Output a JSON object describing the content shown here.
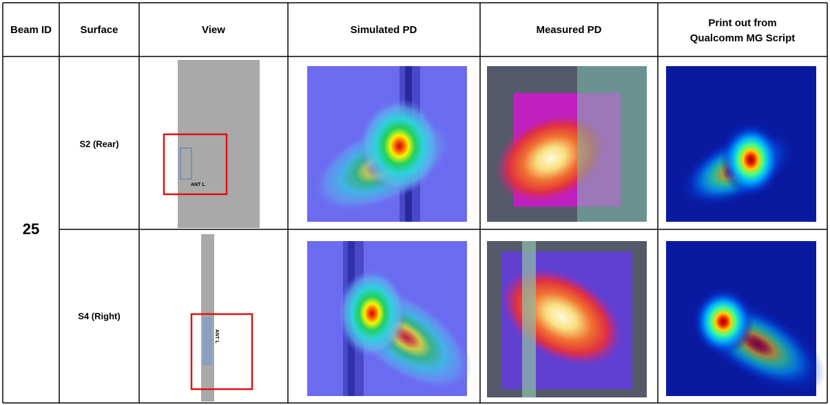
{
  "table": {
    "columns": [
      "Beam ID",
      "Surface",
      "View",
      "Simulated PD",
      "Measured PD",
      "Print out from",
      "Qualcomm MG Script"
    ],
    "beam_id": "25",
    "rows": [
      {
        "surface": "S2 (Rear)",
        "view_label": "ANT L"
      },
      {
        "surface": "S4 (Right)",
        "view_label": "ANT L"
      }
    ]
  }
}
